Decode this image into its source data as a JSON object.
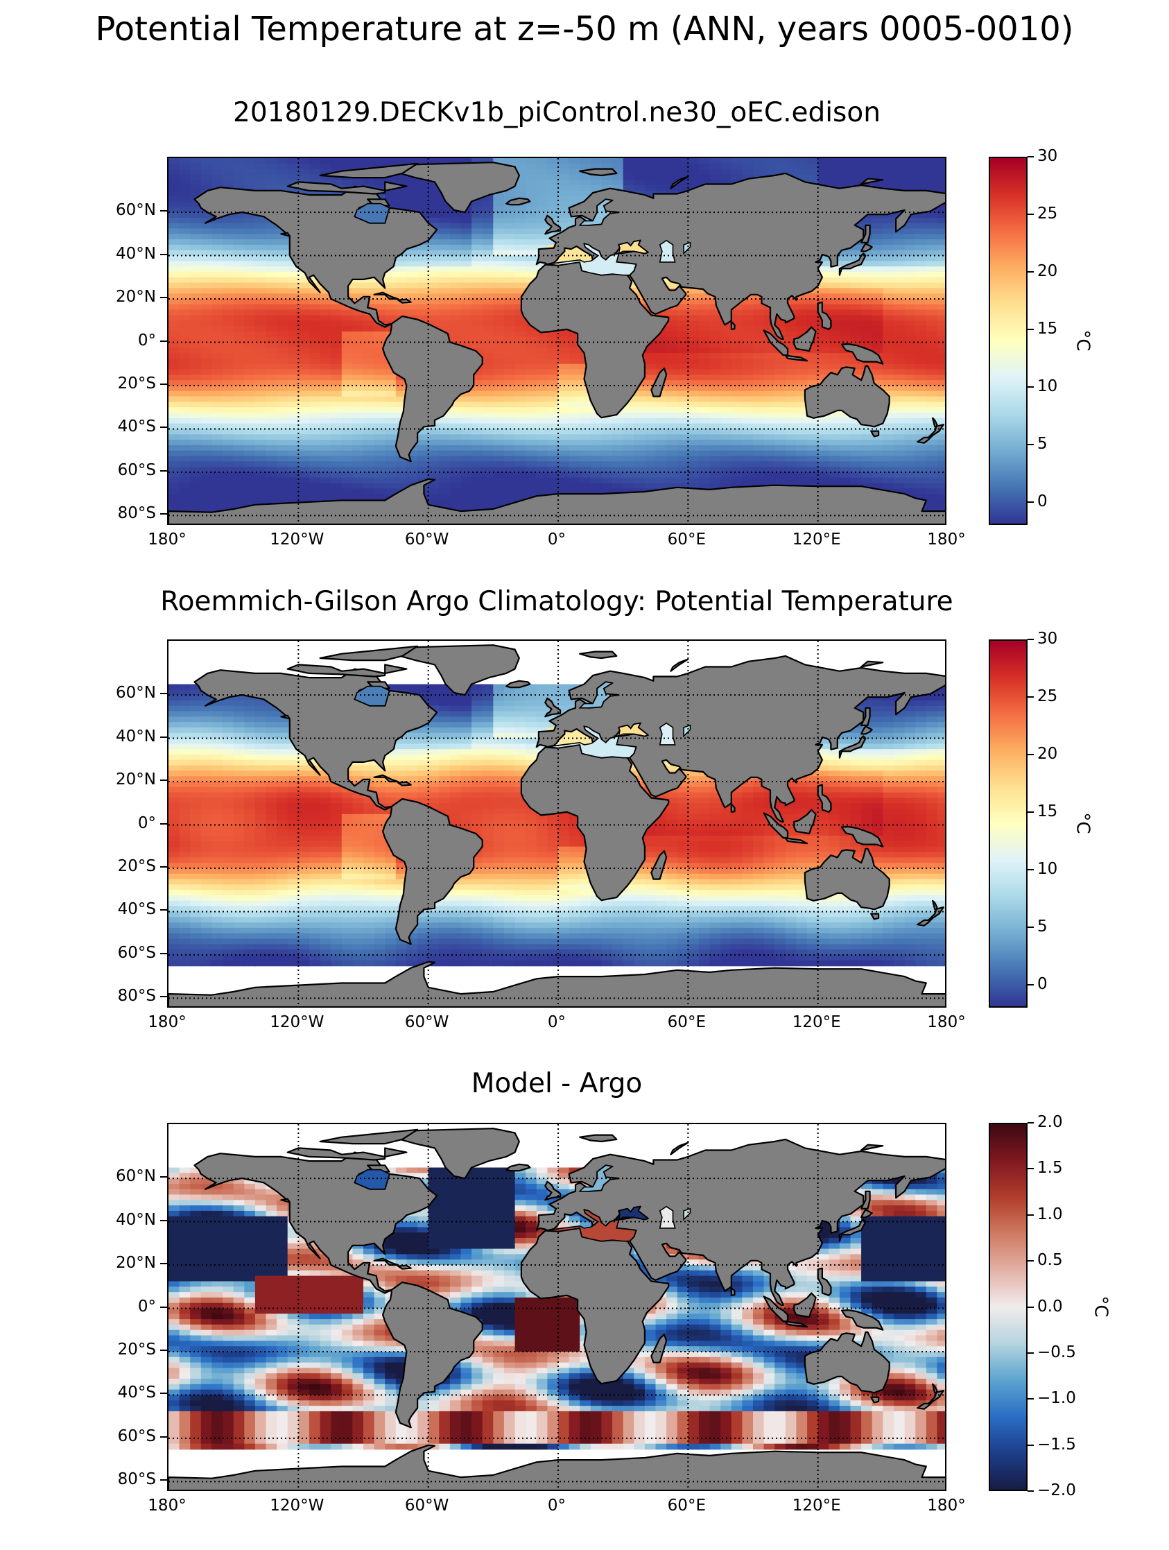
{
  "figure_title": "Potential Temperature at z=-50 m (ANN, years 0005-0010)",
  "colors": {
    "land": "#808080",
    "missing": "#ffffff",
    "rdylbu_r": [
      "#313695",
      "#4575b4",
      "#74add1",
      "#abd9e9",
      "#e0f3f8",
      "#ffffbf",
      "#fee090",
      "#fdae61",
      "#f46d43",
      "#d73027",
      "#a50026"
    ],
    "balance": [
      "#181c43",
      "#1d3e8a",
      "#2a6ec6",
      "#5ea4cf",
      "#b5d4df",
      "#f1ecec",
      "#e3b2a6",
      "#cf7a62",
      "#b13d2d",
      "#811820",
      "#3c0912"
    ]
  },
  "chart_data": [
    {
      "type": "heatmap",
      "title": "20180129.DECKv1b_piControl.ne30_oEC.edison",
      "xlabels": [
        "180°",
        "120°W",
        "60°W",
        "0°",
        "60°E",
        "120°E",
        "180°"
      ],
      "ylabels": [
        "60°N",
        "40°N",
        "20°N",
        "0°",
        "20°S",
        "40°S",
        "60°S",
        "80°S"
      ],
      "lon_range": [
        -180,
        180
      ],
      "lat_range": [
        -85,
        85
      ],
      "grid": true,
      "field": "model",
      "colorbar": {
        "label": "°C",
        "min": -2,
        "max": 30,
        "ticks": [
          "30",
          "25",
          "20",
          "15",
          "10",
          "5",
          "0"
        ],
        "tick_values": [
          30,
          25,
          20,
          15,
          10,
          5,
          0
        ],
        "cmap": "rdylbu_r"
      }
    },
    {
      "type": "heatmap",
      "title": "Roemmich-Gilson Argo Climatology: Potential Temperature",
      "xlabels": [
        "180°",
        "120°W",
        "60°W",
        "0°",
        "60°E",
        "120°E",
        "180°"
      ],
      "ylabels": [
        "60°N",
        "40°N",
        "20°N",
        "0°",
        "20°S",
        "40°S",
        "60°S",
        "80°S"
      ],
      "lon_range": [
        -180,
        180
      ],
      "lat_range": [
        -85,
        85
      ],
      "grid": true,
      "field": "argo",
      "data_lat_limits": [
        -65,
        65
      ],
      "colorbar": {
        "label": "°C",
        "min": -2,
        "max": 30,
        "ticks": [
          "30",
          "25",
          "20",
          "15",
          "10",
          "5",
          "0"
        ],
        "tick_values": [
          30,
          25,
          20,
          15,
          10,
          5,
          0
        ],
        "cmap": "rdylbu_r"
      }
    },
    {
      "type": "heatmap",
      "title": "Model - Argo",
      "xlabels": [
        "180°",
        "120°W",
        "60°W",
        "0°",
        "60°E",
        "120°E",
        "180°"
      ],
      "ylabels": [
        "60°N",
        "40°N",
        "20°N",
        "0°",
        "20°S",
        "40°S",
        "60°S",
        "80°S"
      ],
      "lon_range": [
        -180,
        180
      ],
      "lat_range": [
        -85,
        85
      ],
      "grid": true,
      "field": "bias",
      "data_lat_limits": [
        -65,
        65
      ],
      "colorbar": {
        "label": "°C",
        "min": -2,
        "max": 2,
        "ticks": [
          "2.0",
          "1.5",
          "1.0",
          "0.5",
          "0.0",
          "−0.5",
          "−1.0",
          "−1.5",
          "−2.0"
        ],
        "tick_values": [
          2,
          1.5,
          1,
          0.5,
          0,
          -0.5,
          -1,
          -1.5,
          -2
        ],
        "cmap": "balance"
      }
    }
  ]
}
